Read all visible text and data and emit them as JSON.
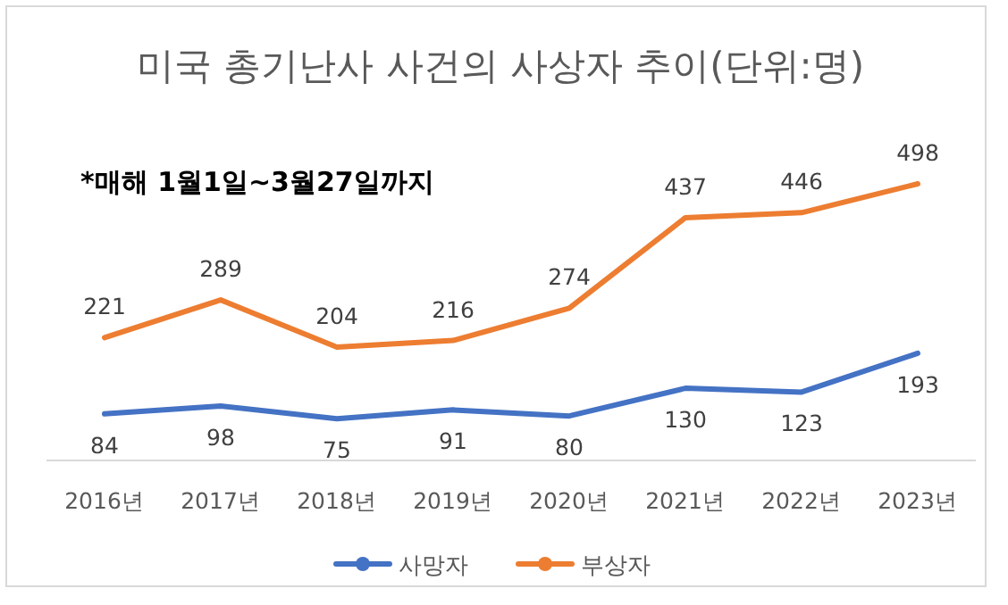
{
  "chart_data": {
    "type": "line",
    "title": "미국 총기난사 사건의 사상자 추이(단위:명)",
    "annotations": [
      "*매해 1월1일~3월27일까지"
    ],
    "categories": [
      "2016년",
      "2017년",
      "2018년",
      "2019년",
      "2020년",
      "2021년",
      "2022년",
      "2023년"
    ],
    "series": [
      {
        "name": "사망자",
        "color": "#4472c4",
        "values": [
          84,
          98,
          75,
          91,
          80,
          130,
          123,
          193
        ]
      },
      {
        "name": "부상자",
        "color": "#ed7d31",
        "values": [
          221,
          289,
          204,
          216,
          274,
          437,
          446,
          498
        ]
      }
    ],
    "data_labels": true,
    "legend": "bottom",
    "marker": "none",
    "line_style": "solid"
  }
}
